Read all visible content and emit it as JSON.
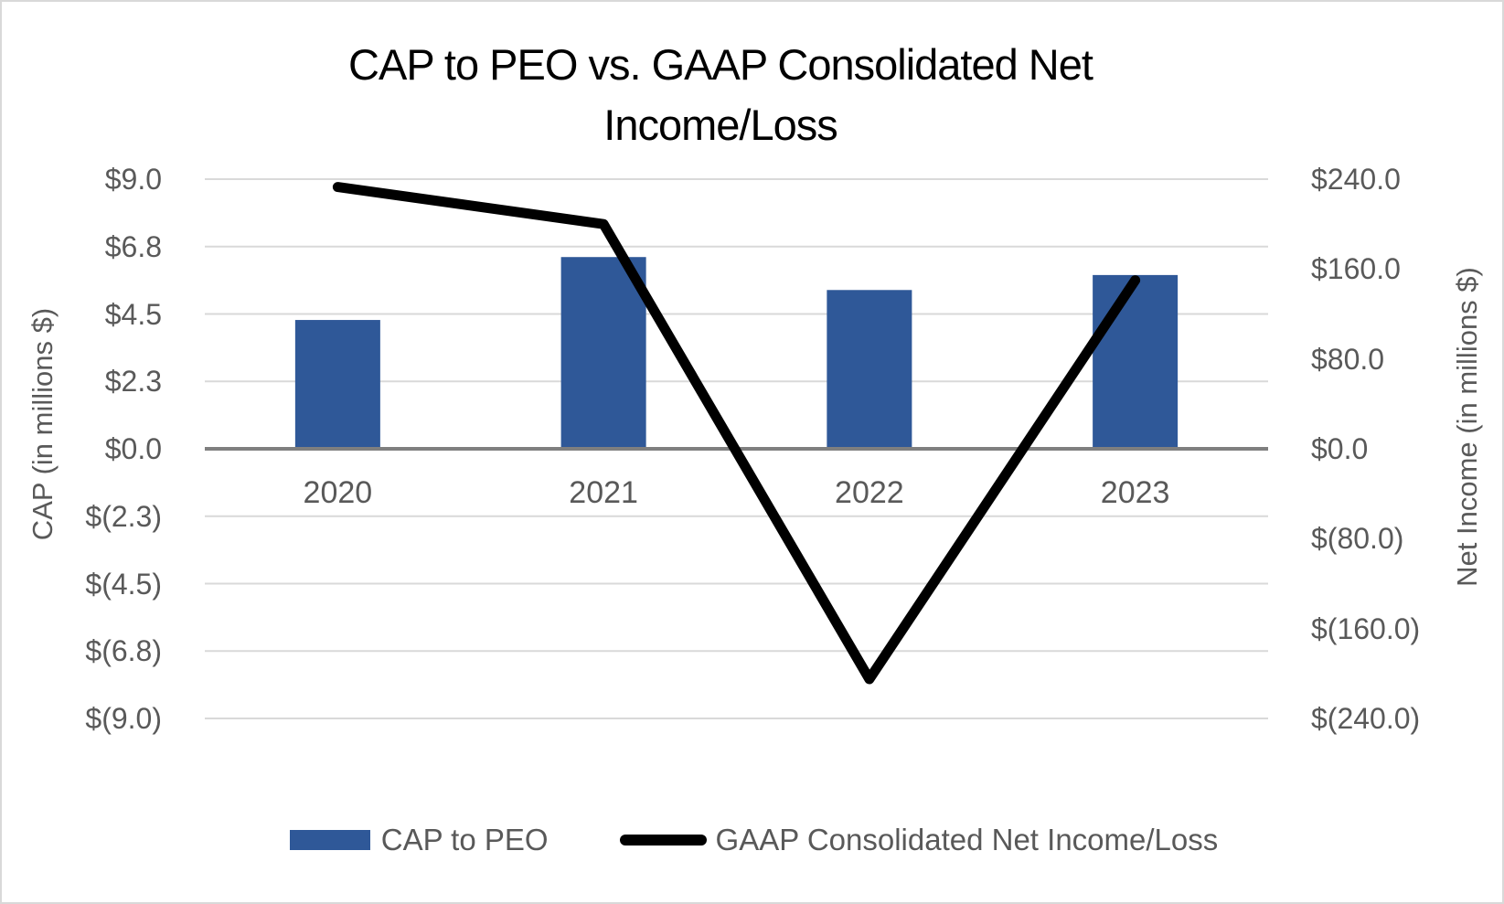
{
  "colors": {
    "bar": "#2f5898",
    "line": "#000000",
    "text_gray": "#595959",
    "gridline": "#d9d9d9",
    "baseline": "#7f7f7f",
    "title": "#000000",
    "border": "#d9d9d9",
    "background": "#ffffff"
  },
  "chart_data": {
    "type": "combo",
    "title": "CAP to PEO vs. GAAP Consolidated Net Income/Loss",
    "title_lines": [
      "CAP to PEO vs. GAAP Consolidated Net",
      "Income/Loss"
    ],
    "categories": [
      "2020",
      "2021",
      "2022",
      "2023"
    ],
    "series": [
      {
        "name": "CAP to PEO",
        "type": "bar",
        "axis": "left",
        "values": [
          4.3,
          6.4,
          5.3,
          5.8
        ]
      },
      {
        "name": "GAAP Consolidated Net Income/Loss",
        "type": "line",
        "axis": "right",
        "values": [
          233,
          200,
          -205,
          150
        ]
      }
    ],
    "left_axis": {
      "label": "CAP (in millions $)",
      "min": -9.0,
      "max": 9.0,
      "ticks": [
        {
          "label": "$9.0",
          "value": 9.0
        },
        {
          "label": "$6.8",
          "value": 6.75
        },
        {
          "label": "$4.5",
          "value": 4.5
        },
        {
          "label": "$2.3",
          "value": 2.25
        },
        {
          "label": "$0.0",
          "value": 0
        },
        {
          "label": "$(2.3)",
          "value": -2.25
        },
        {
          "label": "$(4.5)",
          "value": -4.5
        },
        {
          "label": "$(6.8)",
          "value": -6.75
        },
        {
          "label": "$(9.0)",
          "value": -9.0
        }
      ]
    },
    "right_axis": {
      "label": "Net Income (in millions $)",
      "min": -240.0,
      "max": 240.0,
      "ticks": [
        {
          "label": "$240.0",
          "value": 240
        },
        {
          "label": "$160.0",
          "value": 160
        },
        {
          "label": "$80.0",
          "value": 80
        },
        {
          "label": "$0.0",
          "value": 0
        },
        {
          "label": "$(80.0)",
          "value": -80
        },
        {
          "label": "$(160.0)",
          "value": -160
        },
        {
          "label": "$(240.0)",
          "value": -240
        }
      ]
    },
    "x_axis": {
      "labels": [
        "2020",
        "2021",
        "2022",
        "2023"
      ]
    },
    "grid": true,
    "legend_position": "bottom"
  }
}
